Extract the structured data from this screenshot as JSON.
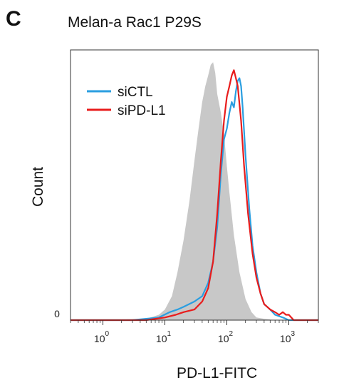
{
  "panel_letter": "C",
  "chart_data": {
    "type": "area",
    "title": "Melan-a Rac1 P29S",
    "xlabel": "PD-L1-FITC",
    "ylabel": "Count",
    "xscale": "log",
    "xlim": [
      0.3,
      3000
    ],
    "ylim": [
      0,
      100
    ],
    "grid": false,
    "legend_position": "top-left",
    "x_ticks": [
      {
        "base": "10",
        "exp": "0",
        "value": 1
      },
      {
        "base": "10",
        "exp": "1",
        "value": 10
      },
      {
        "base": "10",
        "exp": "2",
        "value": 100
      },
      {
        "base": "10",
        "exp": "3",
        "value": 1000
      }
    ],
    "y_ticks": [
      {
        "label": "0",
        "value": 0
      }
    ],
    "series": [
      {
        "name": "",
        "color": "#c8c8c8",
        "style": "filled",
        "x": [
          0.3,
          1,
          5,
          8,
          10,
          13,
          16,
          20,
          25,
          30,
          35,
          40,
          45,
          50,
          55,
          60,
          65,
          70,
          80,
          90,
          100,
          110,
          130,
          160,
          200,
          250,
          300,
          400,
          600,
          800,
          1000,
          3000
        ],
        "y": [
          0,
          0,
          0.5,
          2,
          4,
          9,
          18,
          30,
          45,
          60,
          72,
          82,
          88,
          92,
          96,
          97,
          93,
          85,
          78,
          70,
          58,
          48,
          32,
          18,
          8,
          3,
          1,
          0.5,
          0,
          0,
          0,
          0
        ]
      },
      {
        "name": "siCTL",
        "color": "#2a9ee0",
        "style": "line",
        "x": [
          0.3,
          1,
          3,
          8,
          12,
          16,
          20,
          30,
          40,
          50,
          60,
          70,
          80,
          90,
          100,
          110,
          120,
          130,
          140,
          150,
          160,
          170,
          180,
          200,
          230,
          260,
          300,
          350,
          400,
          500,
          600,
          800,
          1000,
          3000
        ],
        "y": [
          0,
          0,
          0,
          1,
          3,
          4,
          5,
          7,
          9,
          14,
          22,
          35,
          55,
          68,
          72,
          78,
          82,
          80,
          86,
          90,
          91,
          88,
          80,
          62,
          42,
          28,
          18,
          10,
          6,
          4,
          2,
          1,
          0,
          0
        ]
      },
      {
        "name": "siPD-L1",
        "color": "#e81c1c",
        "style": "line",
        "x": [
          0.3,
          1,
          5,
          10,
          15,
          20,
          30,
          40,
          50,
          60,
          70,
          80,
          90,
          100,
          110,
          120,
          130,
          140,
          150,
          170,
          190,
          220,
          260,
          300,
          350,
          400,
          500,
          600,
          700,
          800,
          900,
          1000,
          1200,
          3000
        ],
        "y": [
          0,
          0,
          0,
          1,
          2,
          3,
          4,
          7,
          12,
          22,
          40,
          60,
          75,
          84,
          88,
          92,
          94,
          91,
          88,
          75,
          58,
          40,
          25,
          16,
          10,
          6,
          4,
          3,
          2,
          3,
          2,
          2,
          0,
          0
        ]
      }
    ]
  }
}
